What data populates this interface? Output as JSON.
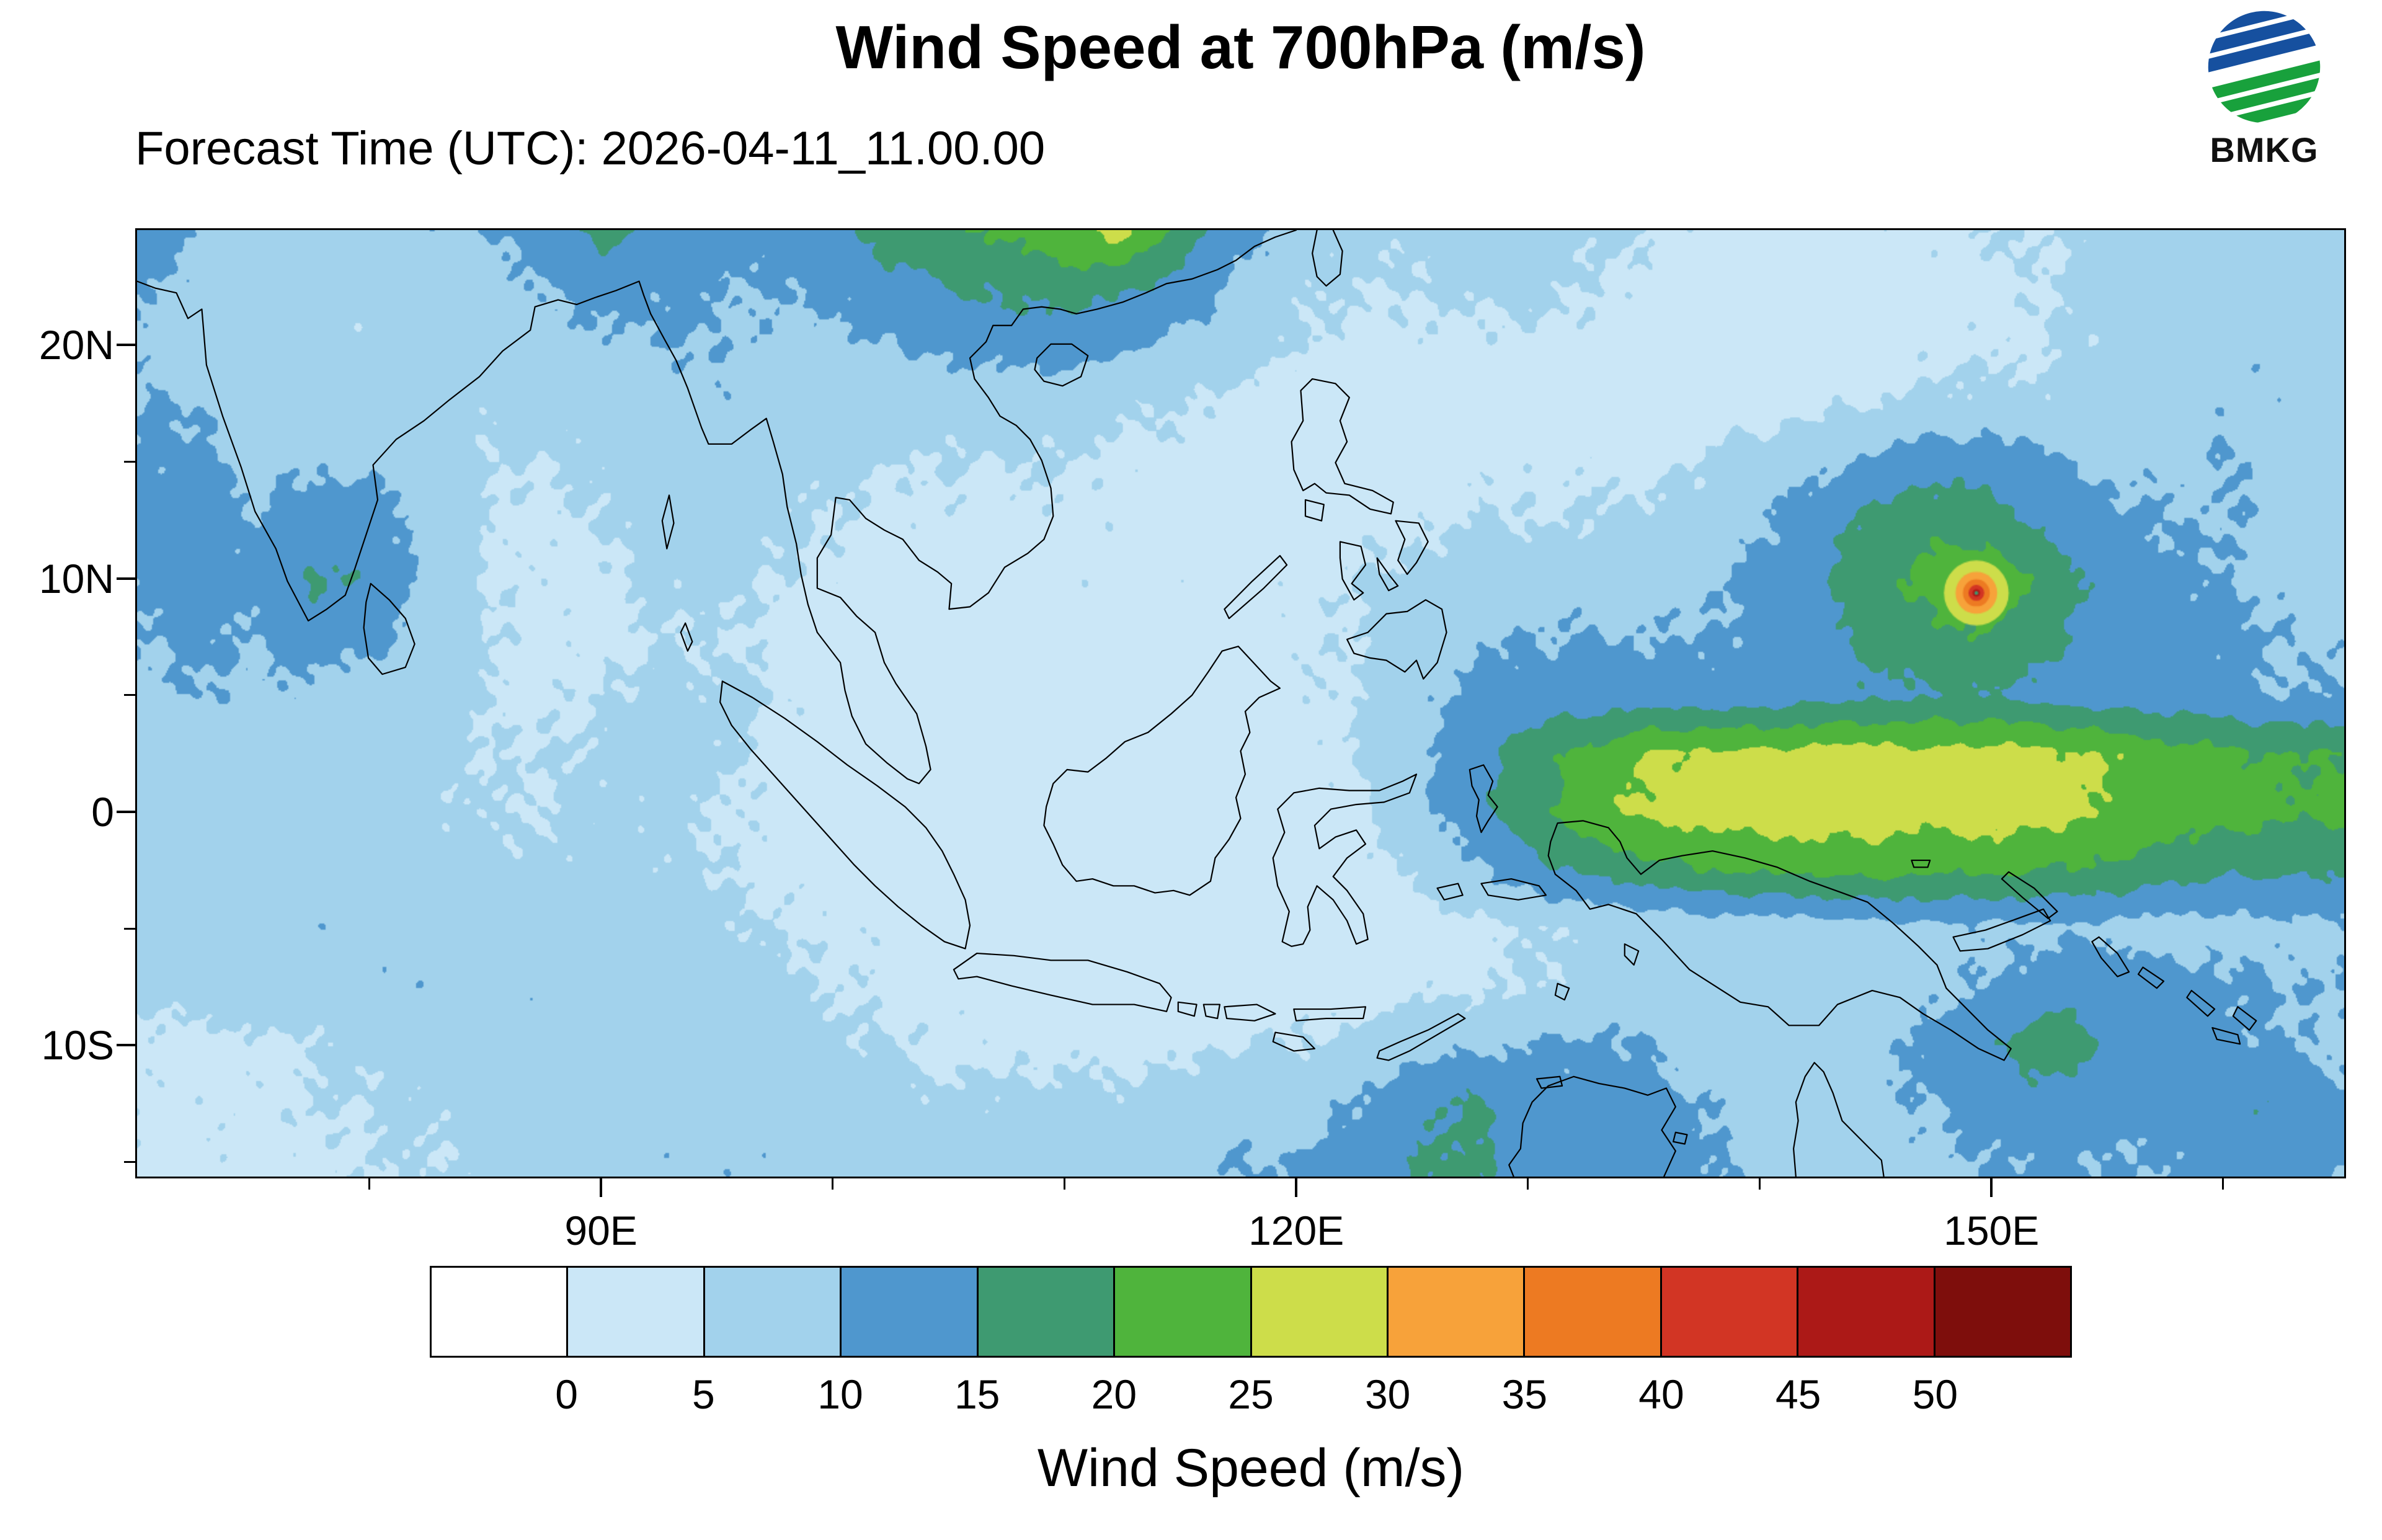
{
  "header": {
    "title": "Wind Speed at 700hPa (m/s)",
    "forecast_label": "Forecast Time (UTC): 2026-04-11_11.00.00",
    "logo_text": "BMKG"
  },
  "chart_data": {
    "type": "heatmap",
    "title": "Wind Speed at 700hPa (m/s)",
    "forecast_time_utc": "2026-04-11_11.00.00",
    "colorbar_label": "Wind Speed (m/s)",
    "units": "m/s",
    "extent": {
      "lon_min": 69.9,
      "lon_max": 165.3,
      "lat_min": -15.7,
      "lat_max": 25.0
    },
    "x_axis": {
      "ticks": [
        {
          "label": "90E",
          "lon": 90
        },
        {
          "label": "120E",
          "lon": 120
        },
        {
          "label": "150E",
          "lon": 150
        }
      ]
    },
    "y_axis": {
      "ticks": [
        {
          "label": "20N",
          "lat": 20
        },
        {
          "label": "10N",
          "lat": 10
        },
        {
          "label": "0",
          "lat": 0
        },
        {
          "label": "10S",
          "lat": -10
        }
      ]
    },
    "levels": [
      0,
      5,
      10,
      15,
      20,
      25,
      30,
      35,
      40,
      45,
      50
    ],
    "colors": [
      "#FFFFFF",
      "#CBE7F7",
      "#A2D2EC",
      "#4F97CE",
      "#3E9A71",
      "#4FB43C",
      "#CDDD4A",
      "#F7A23A",
      "#ED7A22",
      "#D23524",
      "#AC1917",
      "#7E0E0C"
    ],
    "grid": {
      "lon_start": 70,
      "lon_step": 2.5,
      "lat_start": 25,
      "lat_step": -2.5,
      "values": [
        [
          13,
          10,
          8,
          7,
          8,
          9,
          10,
          12,
          16,
          14,
          12,
          12,
          14,
          17,
          19,
          21,
          24,
          27,
          18,
          12,
          8,
          6,
          6,
          7,
          7,
          6,
          5,
          4,
          4,
          4,
          4,
          4,
          5,
          5,
          6,
          7,
          7,
          7,
          8
        ],
        [
          10,
          9,
          7,
          6,
          6,
          7,
          8,
          10,
          12,
          11,
          10,
          10,
          11,
          13,
          15,
          16,
          17,
          16,
          13,
          9,
          6,
          5,
          5,
          6,
          6,
          5,
          4,
          3,
          3,
          3,
          3,
          4,
          4,
          5,
          6,
          7,
          8,
          8,
          8
        ],
        [
          9,
          8,
          7,
          6,
          6,
          7,
          7,
          8,
          9,
          10,
          10,
          9,
          9,
          10,
          11,
          12,
          12,
          11,
          9,
          7,
          5,
          4,
          4,
          4,
          4,
          4,
          3,
          3,
          2,
          3,
          3,
          4,
          4,
          5,
          6,
          8,
          9,
          9,
          8
        ],
        [
          10,
          10,
          8,
          8,
          8,
          7,
          6,
          6,
          7,
          8,
          9,
          8,
          7,
          7,
          7,
          7,
          7,
          6,
          5,
          4,
          3,
          3,
          3,
          3,
          3,
          3,
          3,
          3,
          3,
          4,
          5,
          6,
          6,
          6,
          7,
          8,
          9,
          9,
          8
        ],
        [
          11,
          11,
          9,
          9,
          9,
          8,
          5,
          5,
          6,
          8,
          8,
          7,
          6,
          5,
          5,
          5,
          5,
          4,
          4,
          3,
          3,
          3,
          3,
          4,
          4,
          4,
          4,
          5,
          7,
          9,
          11,
          13,
          13,
          11,
          9,
          9,
          10,
          9,
          8
        ],
        [
          11,
          12,
          10,
          13,
          12,
          8,
          5,
          4,
          5,
          7,
          7,
          6,
          5,
          4,
          4,
          4,
          4,
          4,
          3,
          3,
          3,
          4,
          4,
          5,
          5,
          5,
          6,
          7,
          9,
          13,
          16,
          18,
          17,
          14,
          11,
          10,
          10,
          9,
          8
        ],
        [
          11,
          12,
          11,
          16,
          14,
          9,
          5,
          4,
          4,
          6,
          6,
          5,
          4,
          3,
          3,
          3,
          4,
          4,
          4,
          4,
          4,
          5,
          6,
          7,
          8,
          8,
          8,
          9,
          11,
          14,
          18,
          22,
          24,
          18,
          13,
          11,
          10,
          9,
          8
        ],
        [
          10,
          11,
          10,
          12,
          11,
          8,
          5,
          4,
          4,
          5,
          5,
          4,
          3,
          3,
          2,
          2,
          3,
          3,
          3,
          4,
          4,
          5,
          7,
          9,
          10,
          10,
          10,
          10,
          11,
          13,
          16,
          19,
          20,
          16,
          13,
          12,
          11,
          10,
          9
        ],
        [
          9,
          10,
          9,
          9,
          8,
          7,
          5,
          4,
          5,
          6,
          6,
          5,
          3,
          2,
          2,
          2,
          2,
          3,
          3,
          3,
          4,
          5,
          8,
          11,
          12,
          12,
          12,
          12,
          12,
          13,
          14,
          15,
          15,
          13,
          12,
          12,
          11,
          10,
          10
        ],
        [
          8,
          8,
          8,
          8,
          7,
          6,
          5,
          5,
          6,
          7,
          6,
          4,
          3,
          2,
          2,
          2,
          2,
          2,
          3,
          3,
          3,
          5,
          9,
          13,
          17,
          21,
          25,
          26,
          26,
          27,
          27,
          26,
          27,
          26,
          25,
          22,
          21,
          20,
          20
        ],
        [
          7,
          7,
          7,
          7,
          7,
          6,
          5,
          5,
          6,
          6,
          5,
          4,
          3,
          2,
          2,
          2,
          2,
          2,
          2,
          3,
          3,
          4,
          8,
          13,
          18,
          23,
          26,
          27,
          28,
          28,
          28,
          27,
          28,
          27,
          25,
          23,
          22,
          21,
          21
        ],
        [
          7,
          7,
          8,
          8,
          8,
          7,
          6,
          6,
          6,
          6,
          5,
          4,
          3,
          3,
          2,
          2,
          2,
          2,
          2,
          2,
          3,
          3,
          6,
          9,
          13,
          16,
          18,
          20,
          21,
          21,
          22,
          21,
          21,
          20,
          19,
          17,
          16,
          16,
          16
        ],
        [
          7,
          8,
          8,
          9,
          9,
          8,
          8,
          8,
          8,
          7,
          6,
          5,
          4,
          4,
          3,
          3,
          2,
          2,
          2,
          2,
          2,
          3,
          3,
          4,
          5,
          6,
          6,
          7,
          7,
          8,
          8,
          9,
          9,
          9,
          9,
          8,
          8,
          9,
          9
        ],
        [
          6,
          7,
          8,
          8,
          9,
          9,
          9,
          9,
          8,
          8,
          7,
          6,
          5,
          4,
          4,
          3,
          3,
          3,
          3,
          3,
          3,
          3,
          4,
          4,
          5,
          6,
          7,
          7,
          7,
          8,
          8,
          9,
          10,
          12,
          13,
          12,
          11,
          10,
          10
        ],
        [
          4,
          4,
          4,
          5,
          6,
          7,
          8,
          8,
          8,
          8,
          8,
          7,
          6,
          5,
          4,
          4,
          4,
          4,
          4,
          5,
          5,
          6,
          8,
          9,
          10,
          11,
          10,
          8,
          7,
          8,
          9,
          11,
          14,
          19,
          14,
          12,
          11,
          10,
          9
        ],
        [
          4,
          4,
          4,
          5,
          5,
          6,
          6,
          7,
          7,
          8,
          8,
          8,
          7,
          6,
          6,
          6,
          6,
          6,
          7,
          8,
          8,
          10,
          13,
          16,
          12,
          11,
          12,
          10,
          8,
          8,
          9,
          10,
          12,
          13,
          12,
          11,
          13,
          15,
          11
        ],
        [
          4,
          4,
          4,
          4,
          5,
          5,
          6,
          7,
          8,
          9,
          9,
          9,
          8,
          7,
          7,
          7,
          8,
          8,
          9,
          10,
          10,
          12,
          15,
          16,
          13,
          12,
          13,
          11,
          9,
          8,
          8,
          9,
          10,
          11,
          10,
          10,
          12,
          13,
          10
        ]
      ]
    },
    "cyclone": {
      "center_lon": 149.4,
      "center_lat": 9.4,
      "rings": [
        {
          "radius_deg": 1.4,
          "value": 27
        },
        {
          "radius_deg": 0.9,
          "value": 32
        },
        {
          "radius_deg": 0.58,
          "value": 37
        },
        {
          "radius_deg": 0.34,
          "value": 42
        },
        {
          "radius_deg": 0.16,
          "value": 46
        },
        {
          "radius_deg": 0.08,
          "value": 17
        }
      ]
    }
  },
  "colorbar": {
    "tick_labels": [
      "0",
      "5",
      "10",
      "15",
      "20",
      "25",
      "30",
      "35",
      "40",
      "45",
      "50"
    ],
    "caption": "Wind Speed (m/s)"
  }
}
